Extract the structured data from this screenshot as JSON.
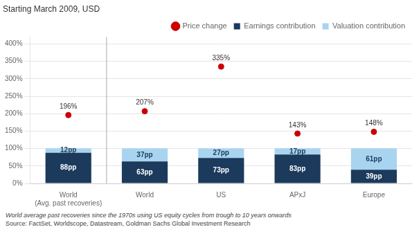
{
  "chart_data": {
    "type": "bar",
    "stacked": true,
    "title": "Starting March 2009, USD",
    "categories": [
      "World\n(Avg. past recoveries)",
      "World",
      "US",
      "APxJ",
      "Europe"
    ],
    "series": [
      {
        "name": "Earnings contribution",
        "type": "bar",
        "color": "#1b3a5c",
        "values": [
          88,
          63,
          73,
          83,
          39
        ],
        "value_labels": [
          "88pp",
          "63pp",
          "73pp",
          "83pp",
          "39pp"
        ]
      },
      {
        "name": "Valuation contribution",
        "type": "bar",
        "color": "#a8d4f0",
        "values": [
          12,
          37,
          27,
          17,
          61
        ],
        "value_labels": [
          "12pp",
          "37pp",
          "27pp",
          "17pp",
          "61pp"
        ]
      },
      {
        "name": "Price change",
        "type": "line",
        "line_style": "none",
        "marker": "circle",
        "color": "#cc0000",
        "values": [
          196,
          207,
          335,
          143,
          148
        ],
        "value_labels": [
          "196%",
          "207%",
          "335%",
          "143%",
          "148%"
        ]
      }
    ],
    "data_labels": true,
    "ylim": [
      0,
      420
    ],
    "yticks": [
      {
        "value": 0,
        "label": "0%"
      },
      {
        "value": 50,
        "label": "50%"
      },
      {
        "value": 100,
        "label": "100%"
      },
      {
        "value": 150,
        "label": "150%"
      },
      {
        "value": 200,
        "label": "200%"
      },
      {
        "value": 250,
        "label": "250%"
      },
      {
        "value": 300,
        "label": "300%"
      },
      {
        "value": 350,
        "label": "350%"
      },
      {
        "value": 400,
        "label": "400%"
      }
    ],
    "grid": true,
    "legend": "upper right",
    "annotations": [
      "World average past recoveries since the 1970s using US equity cycles from trough to 10 years onwards",
      "Source: FactSet, Worldscope, Datastream, Goldman Sachs Global Investment Research"
    ]
  }
}
